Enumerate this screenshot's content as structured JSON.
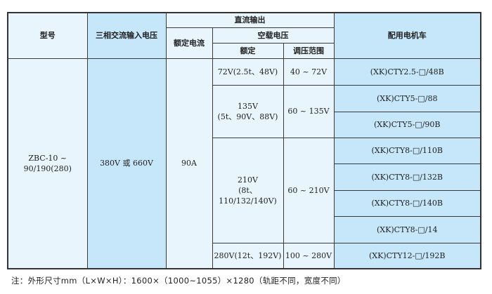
{
  "header": {
    "model": "型号",
    "input_voltage": "三相交流输入电压",
    "dc_output": "直流输出",
    "rated_current": "额定电流",
    "no_load_voltage": "空载电压",
    "rated": "额定",
    "regulation_range": "调压范围",
    "matching_vehicle": "配用电机车"
  },
  "body": {
    "model": "ZBC-10 ~ 90/190(280)",
    "input_voltage": "380V 或 660V",
    "rated_current": "90A",
    "groups": [
      {
        "rated_line1": "72V(2.5t、48V)",
        "rated_line2": "",
        "range": "40 ~ 72V",
        "vehicles": [
          "(XK)CTY2.5-□/48B"
        ]
      },
      {
        "rated_line1": "135V",
        "rated_line2": "(5t、90V、88V)",
        "range": "60 ~ 135V",
        "vehicles": [
          "(XK)CTY5-□/88",
          "(XK)CTY5-□/90B"
        ]
      },
      {
        "rated_line1": "210V",
        "rated_line2": "(8t、110/132/140V)",
        "range": "60 ~ 210V",
        "vehicles": [
          "(XK)CTY8-□/110B",
          "(XK)CTY8-□/132B",
          "(XK)CTY8-□/140B",
          "(XK)CTY8-□/14"
        ]
      },
      {
        "rated_line1": "280V(12t、192V)",
        "rated_line2": "",
        "range": "100 ~ 280V",
        "vehicles": [
          "(XK)CTY12-□/192B"
        ]
      }
    ]
  },
  "note": "注：外形尺寸mm（L×W×H）：1600×（1000~1055）×1280（轨距不同，宽度不同）"
}
